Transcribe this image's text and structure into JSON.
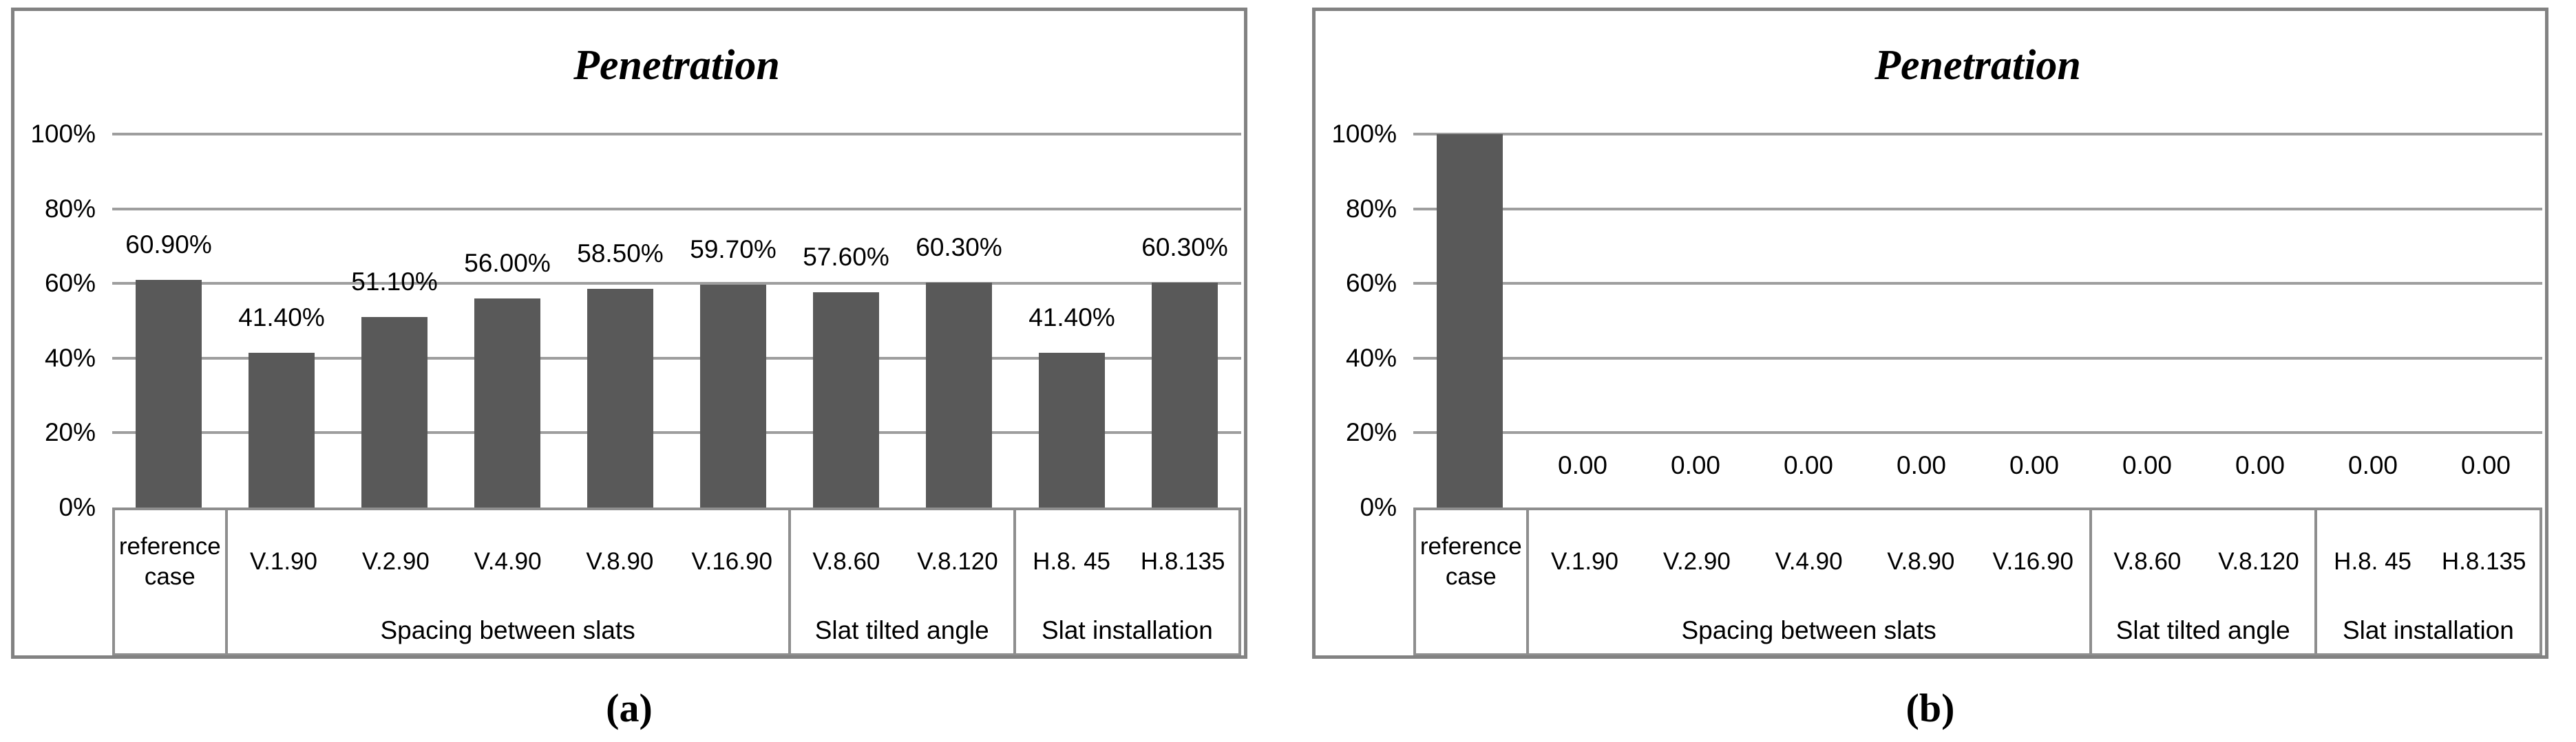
{
  "figure": {
    "background": "#ffffff",
    "bar_color": "#595959",
    "gridline_color": "#9e9e9e",
    "border_color": "#828282"
  },
  "captions": {
    "a": "(a)",
    "b": "(b)"
  },
  "chart_data": [
    {
      "id": "a",
      "type": "bar",
      "title": "Penetration",
      "xlabel": "",
      "ylabel": "",
      "ylim": [
        0,
        100
      ],
      "grid": true,
      "legend": "none",
      "yticks": [
        {
          "label": "100%",
          "value": 100
        },
        {
          "label": "80%",
          "value": 80
        },
        {
          "label": "60%",
          "value": 60
        },
        {
          "label": "40%",
          "value": 40
        },
        {
          "label": "20%",
          "value": 20
        },
        {
          "label": "0%",
          "value": 0
        }
      ],
      "categories": [
        "reference case",
        "V.1.90",
        "V.2.90",
        "V.4.90",
        "V.8.90",
        "V.16.90",
        "V.8.60",
        "V.8.120",
        "H.8. 45",
        "H.8.135"
      ],
      "values": [
        60.9,
        41.4,
        51.1,
        56.0,
        58.5,
        59.7,
        57.6,
        60.3,
        41.4,
        60.3
      ],
      "labels": [
        "60.90%",
        "41.40%",
        "51.10%",
        "56.00%",
        "58.50%",
        "59.70%",
        "57.60%",
        "60.30%",
        "41.40%",
        "60.30%"
      ],
      "groups": [
        {
          "label": "",
          "span": 1
        },
        {
          "label": "Spacing between slats",
          "span": 5
        },
        {
          "label": "Slat tilted angle",
          "span": 2
        },
        {
          "label": "Slat installation",
          "span": 2
        }
      ]
    },
    {
      "id": "b",
      "type": "bar",
      "title": "Penetration",
      "xlabel": "",
      "ylabel": "",
      "ylim": [
        0,
        100
      ],
      "grid": true,
      "legend": "none",
      "yticks": [
        {
          "label": "100%",
          "value": 100
        },
        {
          "label": "80%",
          "value": 80
        },
        {
          "label": "60%",
          "value": 60
        },
        {
          "label": "40%",
          "value": 40
        },
        {
          "label": "20%",
          "value": 20
        },
        {
          "label": "0%",
          "value": 0
        }
      ],
      "categories": [
        "reference case",
        "V.1.90",
        "V.2.90",
        "V.4.90",
        "V.8.90",
        "V.16.90",
        "V.8.60",
        "V.8.120",
        "H.8. 45",
        "H.8.135"
      ],
      "values": [
        100,
        0,
        0,
        0,
        0,
        0,
        0,
        0,
        0,
        0
      ],
      "labels": [
        "",
        "0.00",
        "0.00",
        "0.00",
        "0.00",
        "0.00",
        "0.00",
        "0.00",
        "0.00",
        "0.00"
      ],
      "groups": [
        {
          "label": "",
          "span": 1
        },
        {
          "label": "Spacing between slats",
          "span": 5
        },
        {
          "label": "Slat tilted angle",
          "span": 2
        },
        {
          "label": "Slat installation",
          "span": 2
        }
      ]
    }
  ]
}
